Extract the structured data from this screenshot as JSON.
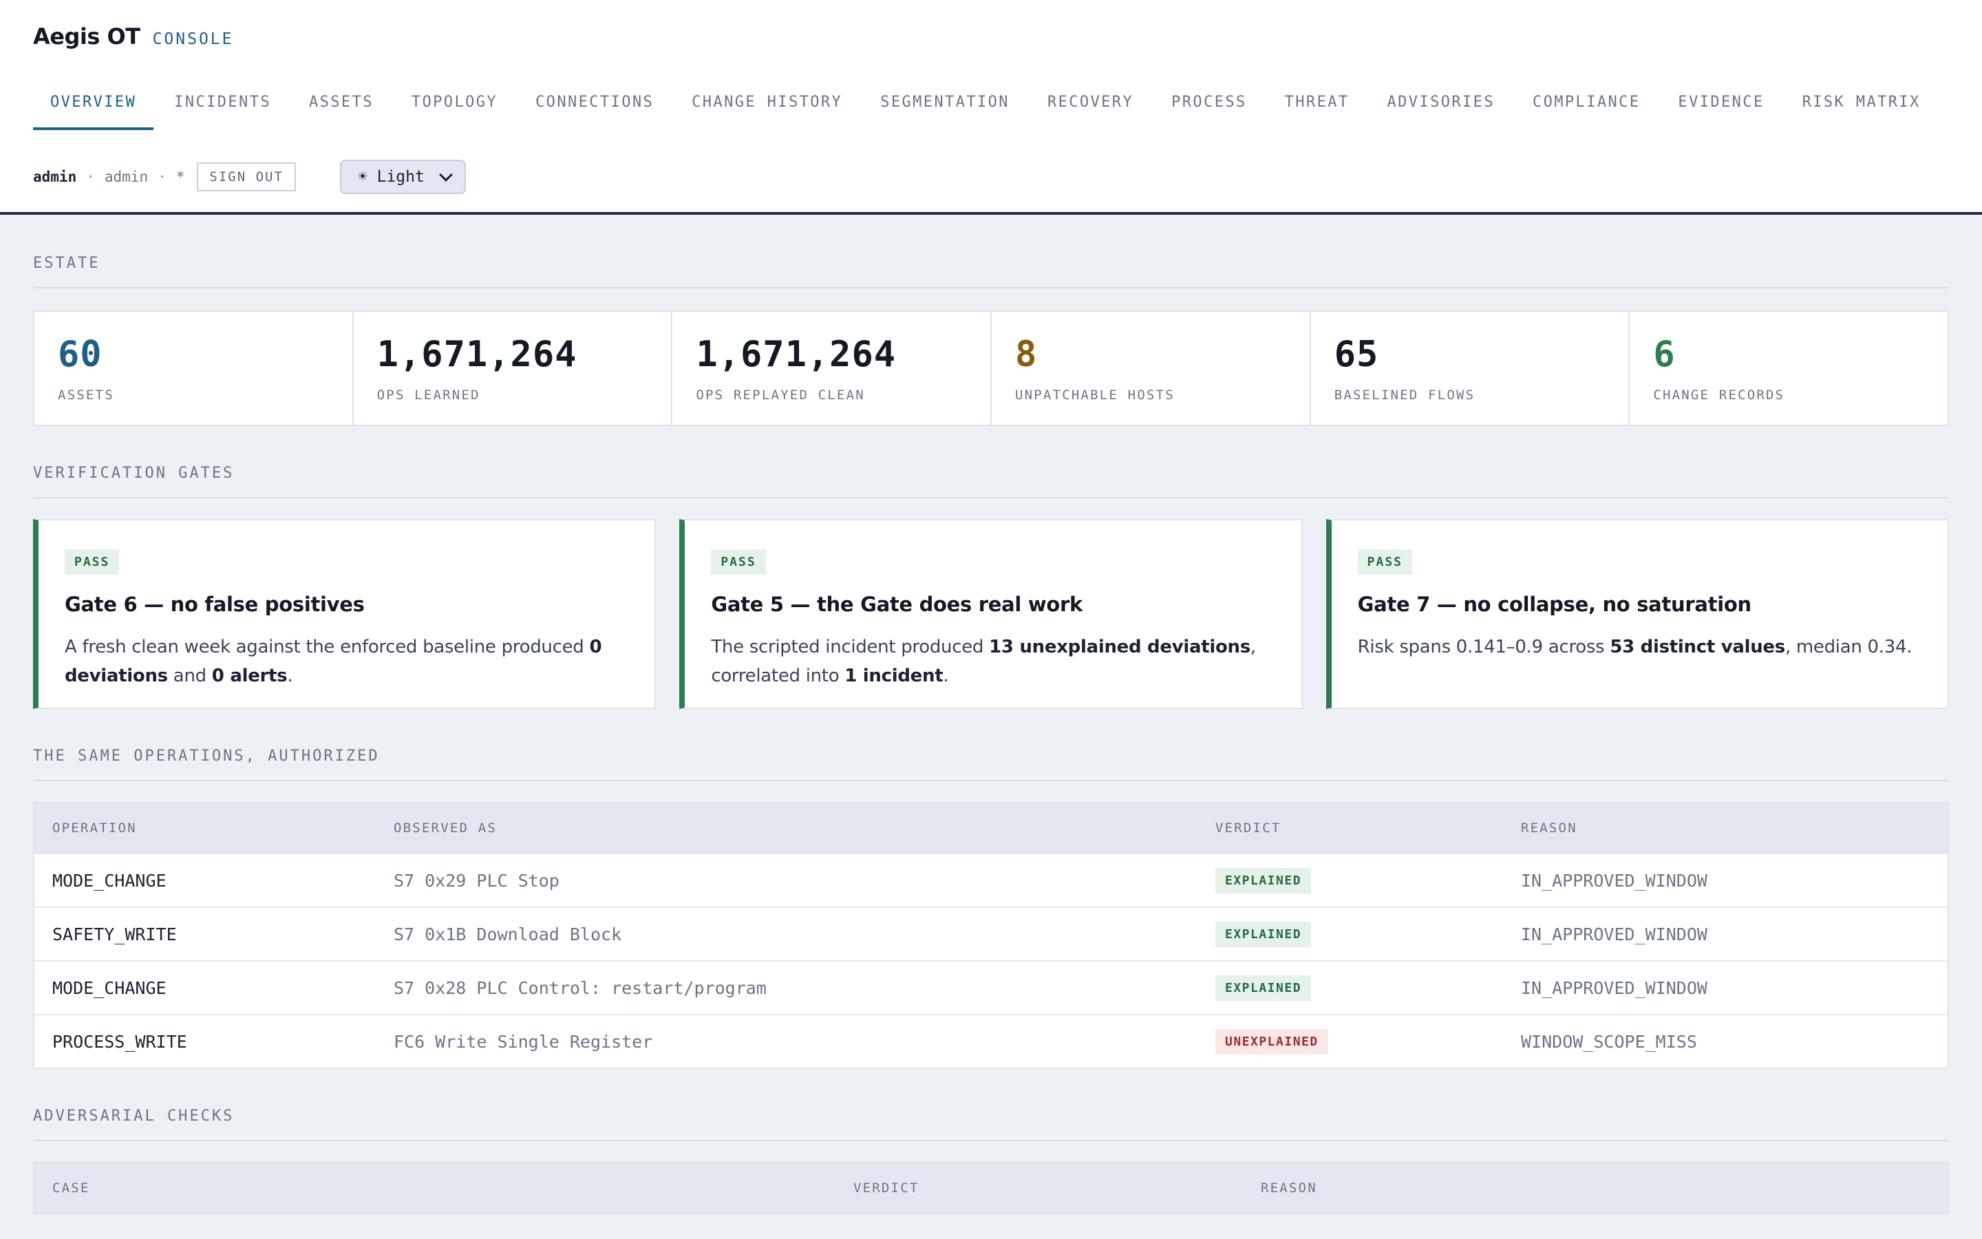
{
  "app": {
    "name": "Aegis OT",
    "subtitle": "CONSOLE"
  },
  "nav": {
    "tabs": [
      "OVERVIEW",
      "INCIDENTS",
      "ASSETS",
      "TOPOLOGY",
      "CONNECTIONS",
      "CHANGE HISTORY",
      "SEGMENTATION",
      "RECOVERY",
      "PROCESS",
      "THREAT",
      "ADVISORIES",
      "COMPLIANCE",
      "EVIDENCE",
      "RISK MATRIX"
    ],
    "active": "OVERVIEW"
  },
  "user": {
    "name": "admin",
    "role": "admin",
    "marker": "*",
    "separator": "·",
    "signout_label": "SIGN OUT",
    "theme_label": "☀ Light"
  },
  "estate": {
    "title": "ESTATE",
    "stats": [
      {
        "value": "60",
        "label": "ASSETS",
        "color": "#1f5f86"
      },
      {
        "value": "1,671,264",
        "label": "OPS LEARNED",
        "color": "#141a24"
      },
      {
        "value": "1,671,264",
        "label": "OPS REPLAYED CLEAN",
        "color": "#141a24"
      },
      {
        "value": "8",
        "label": "UNPATCHABLE HOSTS",
        "color": "#8a5a12"
      },
      {
        "value": "65",
        "label": "BASELINED FLOWS",
        "color": "#141a24"
      },
      {
        "value": "6",
        "label": "CHANGE RECORDS",
        "color": "#2e7d4f"
      }
    ]
  },
  "gates": {
    "title": "VERIFICATION GATES",
    "items": [
      {
        "status": "PASS",
        "title": "Gate 6 — no false positives",
        "body": [
          {
            "t": "A fresh clean week against the enforced baseline produced ",
            "b": false
          },
          {
            "t": "0 deviations",
            "b": true
          },
          {
            "t": " and ",
            "b": false
          },
          {
            "t": "0 alerts",
            "b": true
          },
          {
            "t": ".",
            "b": false
          }
        ]
      },
      {
        "status": "PASS",
        "title": "Gate 5 — the Gate does real work",
        "body": [
          {
            "t": "The scripted incident produced ",
            "b": false
          },
          {
            "t": "13 unexplained deviations",
            "b": true
          },
          {
            "t": ", correlated into ",
            "b": false
          },
          {
            "t": "1 incident",
            "b": true
          },
          {
            "t": ".",
            "b": false
          }
        ]
      },
      {
        "status": "PASS",
        "title": "Gate 7 — no collapse, no saturation",
        "body": [
          {
            "t": "Risk spans 0.141–0.9 across ",
            "b": false
          },
          {
            "t": "53 distinct values",
            "b": true
          },
          {
            "t": ", median 0.34.",
            "b": false
          }
        ]
      }
    ]
  },
  "operations": {
    "title": "THE SAME OPERATIONS, AUTHORIZED",
    "columns": [
      "OPERATION",
      "OBSERVED AS",
      "VERDICT",
      "REASON"
    ],
    "rows": [
      {
        "operation": "MODE_CHANGE",
        "observed": "S7 0x29 PLC Stop",
        "verdict": "EXPLAINED",
        "reason": "IN_APPROVED_WINDOW"
      },
      {
        "operation": "SAFETY_WRITE",
        "observed": "S7 0x1B Download Block",
        "verdict": "EXPLAINED",
        "reason": "IN_APPROVED_WINDOW"
      },
      {
        "operation": "MODE_CHANGE",
        "observed": "S7 0x28 PLC Control: restart/program",
        "verdict": "EXPLAINED",
        "reason": "IN_APPROVED_WINDOW"
      },
      {
        "operation": "PROCESS_WRITE",
        "observed": "FC6 Write Single Register",
        "verdict": "UNEXPLAINED",
        "reason": "WINDOW_SCOPE_MISS"
      }
    ]
  },
  "adversarial": {
    "title": "ADVERSARIAL CHECKS",
    "columns": [
      "CASE",
      "VERDICT",
      "REASON"
    ]
  },
  "colors": {
    "accent": "#1f5f86",
    "pass": "#2e7d4f",
    "warn": "#8a5a12",
    "fail": "#9b2c2c",
    "header_rule": "#1a2b44"
  }
}
